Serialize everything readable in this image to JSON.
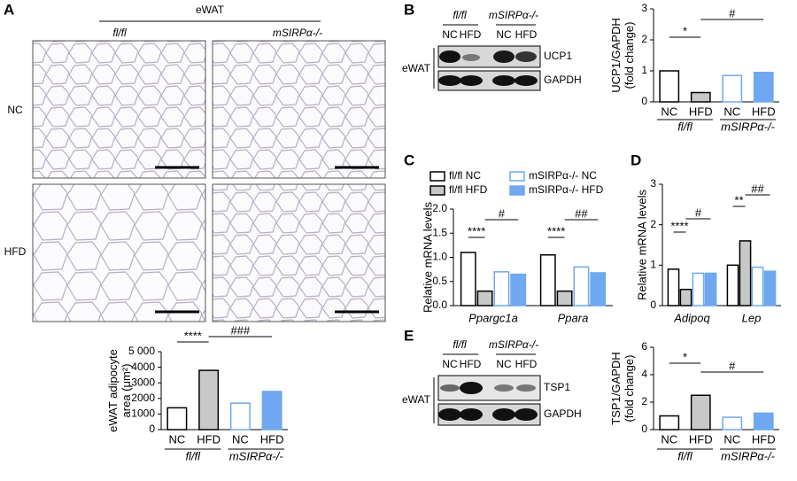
{
  "panel_labels": [
    "A",
    "B",
    "C",
    "D",
    "E"
  ],
  "histology": {
    "tissue": "eWAT",
    "columns": [
      "fl/fl",
      "mSIRPα-/-"
    ],
    "rows": [
      "NC",
      "HFD"
    ]
  },
  "blots": [
    {
      "tissue": "eWAT",
      "groups": [
        "fl/fl",
        "mSIRPα-/-"
      ],
      "lanes": [
        "NC",
        "HFD",
        "NC",
        "HFD"
      ],
      "bands": [
        "UCP1",
        "GAPDH"
      ]
    },
    {
      "tissue": "eWAT",
      "groups": [
        "fl/fl",
        "mSIRPα-/-"
      ],
      "lanes": [
        "NC",
        "HFD",
        "NC",
        "HFD"
      ],
      "bands": [
        "TSP1",
        "GAPDH"
      ]
    }
  ],
  "chart_data": [
    {
      "type": "bar",
      "ylabel": [
        "eWAT adipocyte",
        "area (μm²)"
      ],
      "categories": [
        "NC",
        "HFD",
        "NC",
        "HFD"
      ],
      "groups": [
        "fl/fl",
        "mSIRPα-/-"
      ],
      "values": [
        1400,
        3800,
        1700,
        2450
      ],
      "colors": [
        "#ffffff",
        "#c8c8c8",
        "#ffffff",
        "#6fa8f0"
      ],
      "edge_colors": [
        "#000000",
        "#000000",
        "#6fa8f0",
        "#6fa8f0"
      ],
      "ylim": [
        0,
        5000
      ],
      "yticks": [
        0,
        1000,
        2000,
        3000,
        4000,
        {
          "value": 5000,
          "label": "5 000"
        }
      ],
      "annotations": [
        "****",
        "###"
      ]
    },
    {
      "type": "bar",
      "ylabel": [
        "UCP1/GAPDH",
        "(fold change)"
      ],
      "categories": [
        "NC",
        "HFD",
        "NC",
        "HFD"
      ],
      "groups": [
        "fl/fl",
        "mSIRPα-/-"
      ],
      "values": [
        1.0,
        0.3,
        0.85,
        0.95
      ],
      "colors": [
        "#ffffff",
        "#c8c8c8",
        "#ffffff",
        "#6fa8f0"
      ],
      "edge_colors": [
        "#000000",
        "#000000",
        "#6fa8f0",
        "#6fa8f0"
      ],
      "ylim": [
        0,
        3
      ],
      "yticks": [
        0,
        1,
        2,
        3
      ],
      "annotations": [
        "*",
        "#"
      ]
    },
    {
      "type": "grouped_bar",
      "ylabel": [
        "Relative mRNA levels"
      ],
      "categories": [
        "Ppargc1a",
        "Ppara"
      ],
      "series": [
        {
          "name": "fl/fl NC",
          "color": "#ffffff",
          "edge_color": "#000000",
          "values": [
            1.1,
            1.05
          ]
        },
        {
          "name": "fl/fl HFD",
          "color": "#c8c8c8",
          "edge_color": "#000000",
          "values": [
            0.3,
            0.3
          ]
        },
        {
          "name": "mSIRPα-/- NC",
          "color": "#ffffff",
          "edge_color": "#6fa8f0",
          "values": [
            0.7,
            0.8
          ]
        },
        {
          "name": "mSIRPα-/- HFD",
          "color": "#6fa8f0",
          "edge_color": "#6fa8f0",
          "values": [
            0.65,
            0.68
          ]
        }
      ],
      "ylim": [
        0,
        2
      ],
      "yticks": [
        {
          "value": 0,
          "label": "0.0"
        },
        0.5,
        {
          "value": 1,
          "label": "1.0"
        },
        1.5,
        {
          "value": 2,
          "label": "2.0"
        }
      ],
      "annotations": [
        "****",
        "#",
        "****",
        "##"
      ]
    },
    {
      "type": "grouped_bar",
      "ylabel": [
        "Relative mRNA levels"
      ],
      "categories": [
        "Adipoq",
        "Lep"
      ],
      "series": [
        {
          "color": "#ffffff",
          "edge_color": "#000000",
          "values": [
            0.9,
            1.0
          ]
        },
        {
          "color": "#c8c8c8",
          "edge_color": "#000000",
          "values": [
            0.4,
            1.6
          ]
        },
        {
          "color": "#ffffff",
          "edge_color": "#6fa8f0",
          "values": [
            0.8,
            0.95
          ]
        },
        {
          "color": "#6fa8f0",
          "edge_color": "#6fa8f0",
          "values": [
            0.8,
            0.85
          ]
        }
      ],
      "ylim": [
        0,
        3
      ],
      "yticks": [
        0,
        1,
        2,
        3
      ],
      "annotations": [
        "****",
        "#",
        "**",
        "##"
      ]
    },
    {
      "type": "bar",
      "ylabel": [
        "TSP1/GAPDH",
        "(fold change)"
      ],
      "categories": [
        "NC",
        "HFD",
        "NC",
        "HFD"
      ],
      "groups": [
        "fl/fl",
        "mSIRPα-/-"
      ],
      "values": [
        1.0,
        2.5,
        0.9,
        1.2
      ],
      "colors": [
        "#ffffff",
        "#c8c8c8",
        "#ffffff",
        "#6fa8f0"
      ],
      "edge_colors": [
        "#000000",
        "#000000",
        "#6fa8f0",
        "#6fa8f0"
      ],
      "ylim": [
        0,
        6
      ],
      "yticks": [
        0,
        2,
        4,
        6
      ],
      "annotations": [
        "*",
        "#"
      ]
    }
  ]
}
